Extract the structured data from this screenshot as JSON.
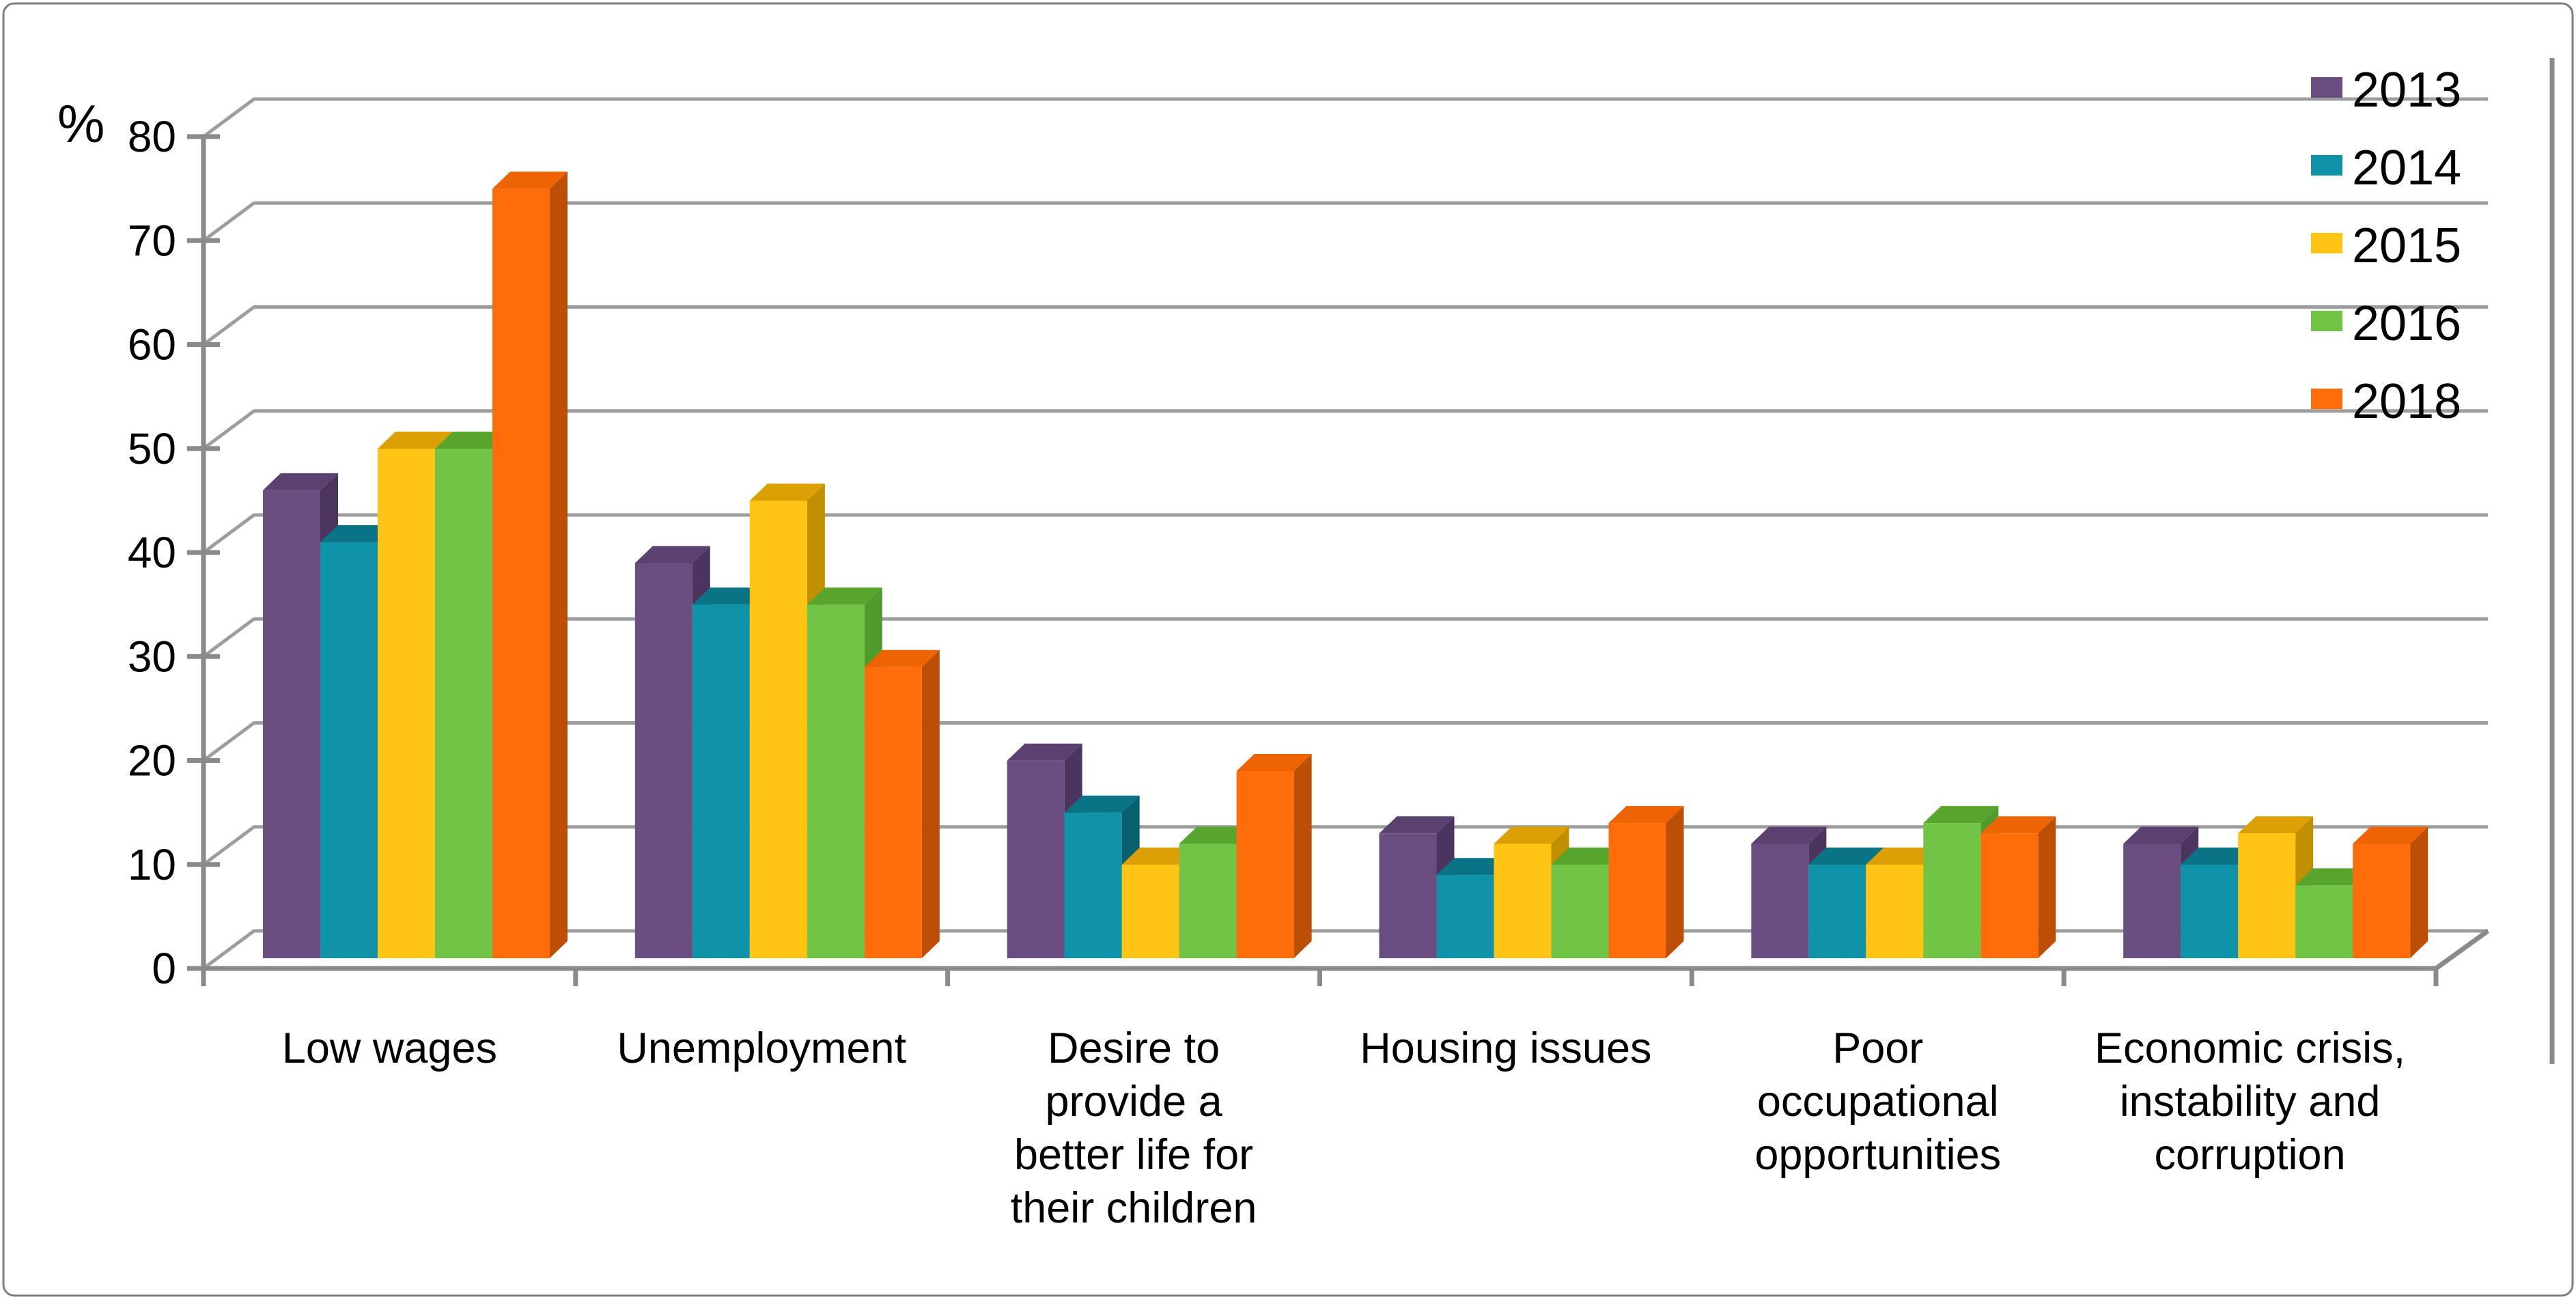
{
  "chart_data": {
    "type": "bar",
    "style": "3d-clustered-column",
    "title": "",
    "ylabel": "%",
    "xlabel": "",
    "ylim": [
      0,
      80
    ],
    "ytick_step": 10,
    "ytick_labels": [
      "0",
      "10",
      "20",
      "30",
      "40",
      "50",
      "60",
      "70",
      "80"
    ],
    "grid": true,
    "legend_position": "top-right",
    "categories": [
      "Low wages",
      "Unemployment",
      "Desire to provide a better life for their children",
      "Housing issues",
      "Poor occupational opportunities",
      "Economic crisis, instability and corruption"
    ],
    "category_lines": [
      [
        "Low wages"
      ],
      [
        "Unemployment"
      ],
      [
        "Desire to",
        "provide a",
        "better life for",
        "their children"
      ],
      [
        "Housing issues"
      ],
      [
        "Poor",
        "occupational",
        "opportunities"
      ],
      [
        "Economic crisis,",
        "instability and",
        "corruption"
      ]
    ],
    "series": [
      {
        "name": "2013",
        "color": "#6A4E82",
        "top_color": "#5B4170",
        "side_color": "#4B355F",
        "values": [
          45,
          38,
          19,
          12,
          11,
          11
        ]
      },
      {
        "name": "2014",
        "color": "#0E93A8",
        "top_color": "#0B7386",
        "side_color": "#07606F",
        "values": [
          40,
          34,
          14,
          8,
          9,
          9
        ]
      },
      {
        "name": "2015",
        "color": "#FFC414",
        "top_color": "#DCA004",
        "side_color": "#C09000",
        "values": [
          49,
          44,
          9,
          11,
          9,
          12
        ]
      },
      {
        "name": "2016",
        "color": "#70C544",
        "top_color": "#57A52D",
        "side_color": "#4F9B2B",
        "values": [
          49,
          34,
          11,
          9,
          13,
          7
        ]
      },
      {
        "name": "2018",
        "color": "#FF6C0A",
        "top_color": "#EE6303",
        "side_color": "#BC4F05",
        "values": [
          74,
          28,
          18,
          13,
          12,
          11
        ]
      }
    ]
  },
  "colors": {
    "background": "#FFFFFF",
    "gridline": "#9D9D9D",
    "axis": "#8A8A8A",
    "outer_border": "#7F7F7F",
    "text": "#000000"
  }
}
